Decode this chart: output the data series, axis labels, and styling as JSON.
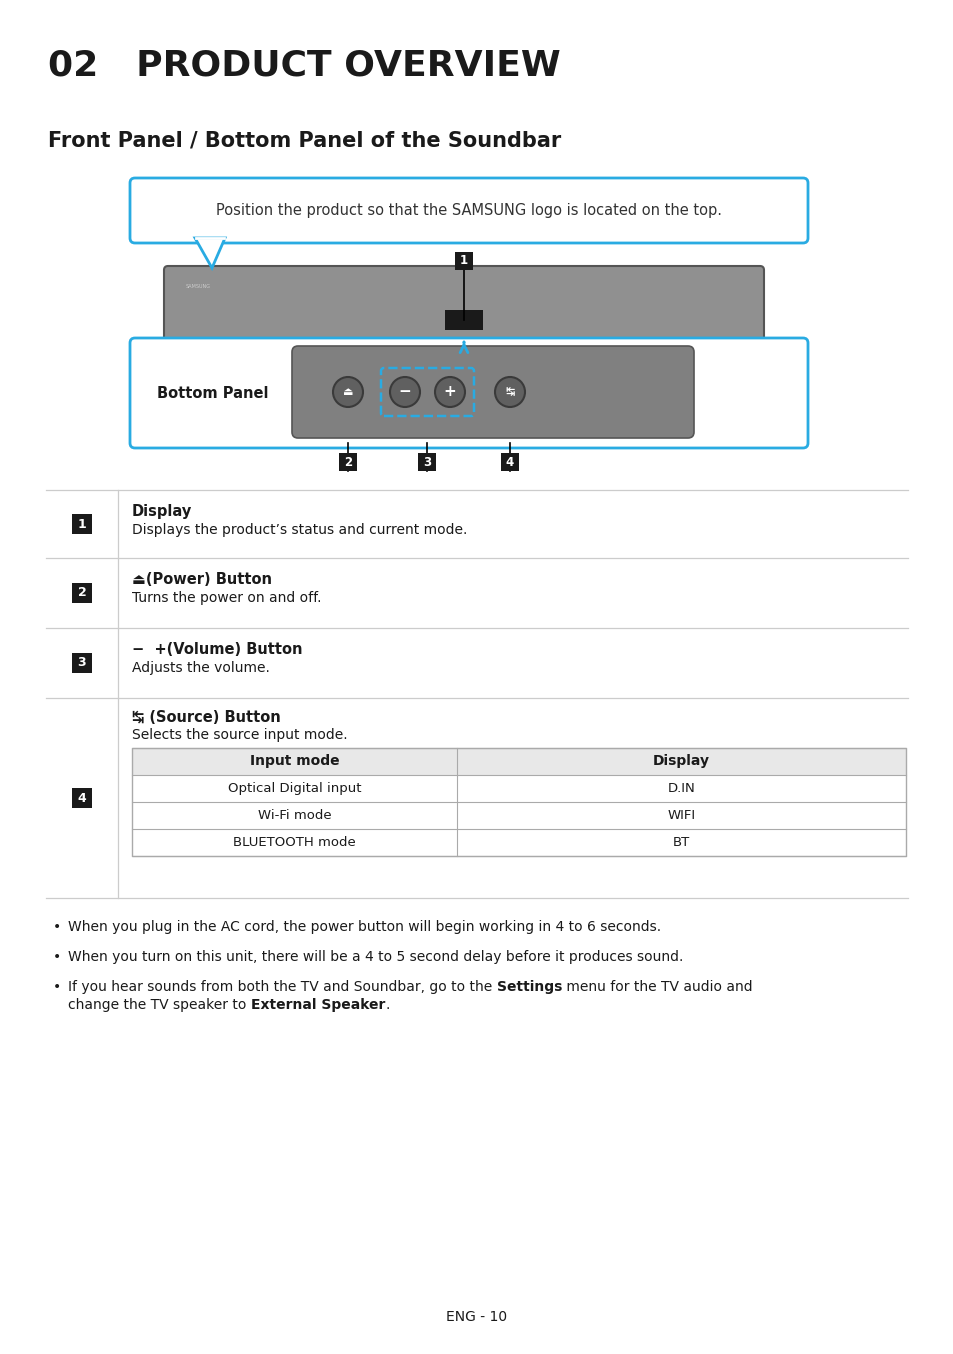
{
  "title": "02   PRODUCT OVERVIEW",
  "subtitle": "Front Panel / Bottom Panel of the Soundbar",
  "callout_text": "Position the product so that the SAMSUNG logo is located on the top.",
  "bottom_panel_label": "Bottom Panel",
  "items": [
    {
      "num": "1",
      "title": "Display",
      "desc": "Displays the product’s status and current mode."
    },
    {
      "num": "2",
      "title_bold": "⏏ (Power) Button",
      "desc": "Turns the power on and off."
    },
    {
      "num": "3",
      "title_bold": "−  + (Volume) Button",
      "desc": "Adjusts the volume."
    },
    {
      "num": "4",
      "title_bold": "↹ (Source) Button",
      "desc": "Selects the source input mode.",
      "table": {
        "headers": [
          "Input mode",
          "Display"
        ],
        "rows": [
          [
            "Optical Digital input",
            "D.IN"
          ],
          [
            "Wi-Fi mode",
            "WIFI"
          ],
          [
            "BLUETOOTH mode",
            "BT"
          ]
        ]
      }
    }
  ],
  "bullet1": "When you plug in the AC cord, the power button will begin working in 4 to 6 seconds.",
  "bullet2": "When you turn on this unit, there will be a 4 to 5 second delay before it produces sound.",
  "bullet3a": "If you hear sounds from both the TV and Soundbar, go to the ",
  "bullet3b": "Settings",
  "bullet3c": " menu for the TV audio and",
  "bullet3d": "change the TV speaker to ",
  "bullet3e": "External Speaker",
  "bullet3f": ".",
  "footer": "ENG - 10",
  "bg_color": "#ffffff",
  "text_color": "#1a1a1a",
  "cyan_color": "#29abe2",
  "black": "#1a1a1a",
  "gray_bar": "#888888",
  "gray_dark": "#555555",
  "line_color": "#cccccc",
  "table_header_bg": "#e8e8e8",
  "table_border": "#aaaaaa"
}
